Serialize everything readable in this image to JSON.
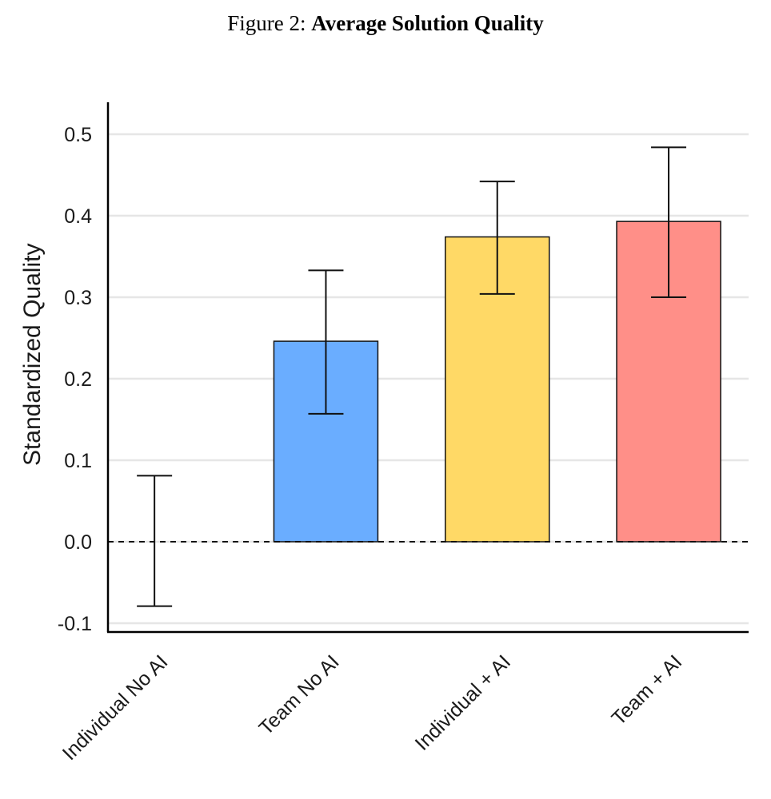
{
  "figure": {
    "label": "Figure 2:",
    "title": "Average Solution Quality"
  },
  "chart_data": {
    "type": "bar",
    "title": "Average Solution Quality",
    "xlabel": "",
    "ylabel": "Standardized Quality",
    "categories": [
      "Individual No AI",
      "Team No AI",
      "Individual + AI",
      "Team + AI"
    ],
    "values": [
      0.0,
      0.246,
      0.374,
      0.393
    ],
    "error_low": [
      -0.079,
      0.157,
      0.304,
      0.3
    ],
    "error_high": [
      0.081,
      0.333,
      0.442,
      0.484
    ],
    "colors": [
      "#ffffff",
      "#6aadff",
      "#ffd966",
      "#ff8f88"
    ],
    "ylim": [
      -0.11,
      0.53
    ],
    "yticks": [
      -0.1,
      0.0,
      0.1,
      0.2,
      0.3,
      0.4,
      0.5
    ],
    "ytick_labels": [
      "-0.1",
      "0.0",
      "0.1",
      "0.2",
      "0.3",
      "0.4",
      "0.5"
    ],
    "grid": true,
    "reference_line": 0.0
  }
}
